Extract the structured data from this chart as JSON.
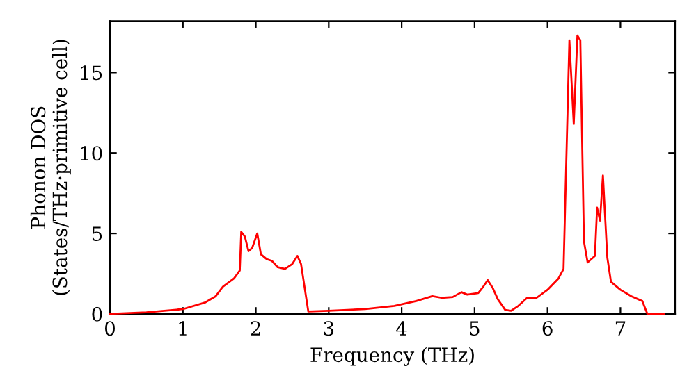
{
  "chart_data": {
    "type": "line",
    "xlabel": "Frequency (THz)",
    "ylabel": "Phonon DOS\n(States/THz·primitive cell)",
    "xlim": [
      0,
      7.75
    ],
    "ylim": [
      0,
      18.2
    ],
    "xticks": [
      0,
      1,
      2,
      3,
      4,
      5,
      6,
      7
    ],
    "yticks": [
      0,
      5,
      10,
      15
    ],
    "grid": false,
    "legend": false,
    "marker": "none",
    "line_style": "solid",
    "series": [
      {
        "color": "#ff0000",
        "x": [
          0,
          0.5,
          1.0,
          1.3,
          1.45,
          1.55,
          1.7,
          1.78,
          1.8,
          1.85,
          1.9,
          1.95,
          2.02,
          2.07,
          2.15,
          2.22,
          2.3,
          2.4,
          2.5,
          2.57,
          2.62,
          2.72,
          3.0,
          3.5,
          3.9,
          4.2,
          4.42,
          4.55,
          4.7,
          4.82,
          4.9,
          5.05,
          5.12,
          5.18,
          5.25,
          5.32,
          5.42,
          5.5,
          5.6,
          5.72,
          5.85,
          6.0,
          6.15,
          6.22,
          6.3,
          6.36,
          6.41,
          6.45,
          6.5,
          6.55,
          6.65,
          6.68,
          6.72,
          6.76,
          6.82,
          6.87,
          7.0,
          7.15,
          7.3,
          7.37,
          7.6
        ],
        "values": [
          0,
          0.1,
          0.3,
          0.7,
          1.1,
          1.7,
          2.2,
          2.7,
          5.1,
          4.8,
          3.9,
          4.1,
          5.0,
          3.7,
          3.4,
          3.3,
          2.9,
          2.8,
          3.1,
          3.6,
          3.1,
          0.15,
          0.2,
          0.3,
          0.5,
          0.8,
          1.1,
          1.0,
          1.05,
          1.35,
          1.2,
          1.3,
          1.7,
          2.1,
          1.6,
          0.9,
          0.25,
          0.2,
          0.5,
          1.0,
          1.0,
          1.5,
          2.2,
          2.8,
          17.0,
          11.8,
          17.3,
          17.0,
          4.5,
          3.2,
          3.6,
          6.6,
          5.8,
          8.6,
          3.5,
          2.0,
          1.5,
          1.1,
          0.8,
          0.0,
          0.0
        ]
      }
    ]
  }
}
